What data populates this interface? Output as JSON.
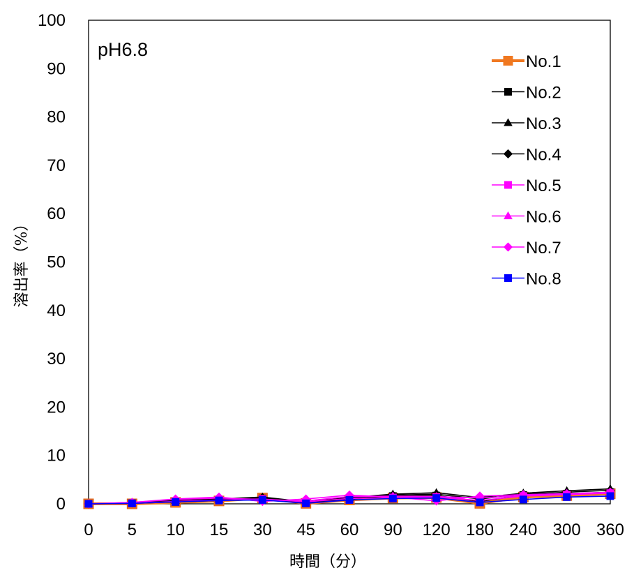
{
  "chart_data": {
    "type": "line",
    "annotation": "pH6.8",
    "xlabel": "時間（分）",
    "ylabel": "溶出率（%）",
    "categories": [
      "0",
      "5",
      "10",
      "15",
      "30",
      "45",
      "60",
      "90",
      "120",
      "180",
      "240",
      "300",
      "360"
    ],
    "ylim": [
      0,
      100
    ],
    "yticks": [
      0,
      10,
      20,
      30,
      40,
      50,
      60,
      70,
      80,
      90,
      100
    ],
    "grid": false,
    "legend_position": "top-right",
    "series": [
      {
        "name": "No.1",
        "color": "#F07820",
        "marker": "square",
        "emphasis": true,
        "values": [
          0.0,
          0.0,
          0.3,
          0.6,
          1.2,
          0.1,
          0.8,
          1.2,
          1.3,
          0.1,
          1.4,
          1.7,
          2.1
        ]
      },
      {
        "name": "No.2",
        "color": "#000000",
        "marker": "square",
        "values": [
          0.0,
          0.1,
          0.4,
          0.7,
          1.1,
          0.2,
          1.0,
          1.6,
          1.7,
          0.5,
          1.8,
          2.1,
          2.4
        ]
      },
      {
        "name": "No.3",
        "color": "#000000",
        "marker": "triangle",
        "values": [
          0.0,
          0.2,
          0.7,
          1.0,
          1.4,
          0.4,
          1.3,
          2.0,
          2.3,
          1.3,
          2.2,
          2.7,
          3.1
        ]
      },
      {
        "name": "No.4",
        "color": "#000000",
        "marker": "diamond",
        "values": [
          0.0,
          0.2,
          0.6,
          0.9,
          1.3,
          0.3,
          1.2,
          1.8,
          2.0,
          1.0,
          2.0,
          2.4,
          2.8
        ]
      },
      {
        "name": "No.5",
        "color": "#FF00FF",
        "marker": "square",
        "values": [
          0.0,
          0.1,
          0.5,
          0.8,
          1.0,
          0.4,
          1.1,
          1.3,
          1.4,
          0.7,
          1.6,
          1.9,
          2.2
        ]
      },
      {
        "name": "No.6",
        "color": "#FF00FF",
        "marker": "triangle",
        "values": [
          0.0,
          0.3,
          0.9,
          1.2,
          0.9,
          0.6,
          1.5,
          1.6,
          1.5,
          1.2,
          1.7,
          2.0,
          2.3
        ]
      },
      {
        "name": "No.7",
        "color": "#FF00FF",
        "marker": "diamond",
        "values": [
          0.0,
          0.3,
          1.0,
          1.4,
          0.5,
          1.0,
          1.8,
          1.4,
          0.6,
          1.6,
          1.9,
          2.1,
          2.4
        ]
      },
      {
        "name": "No.8",
        "color": "#0000FF",
        "marker": "square",
        "values": [
          0.0,
          0.1,
          0.4,
          0.7,
          0.8,
          0.1,
          0.8,
          1.1,
          1.2,
          0.3,
          0.9,
          1.4,
          1.6
        ]
      }
    ]
  }
}
